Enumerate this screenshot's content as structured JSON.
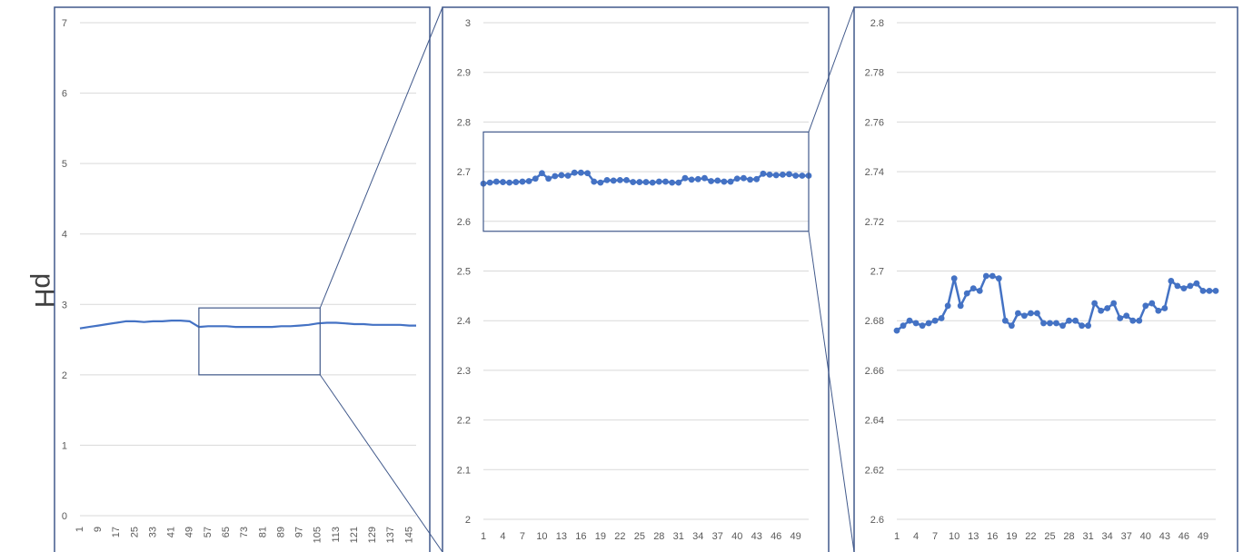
{
  "figure": {
    "ylabel": "pH"
  },
  "chart_data": [
    {
      "type": "line",
      "title": "",
      "xlabel": "",
      "ylabel": "pH",
      "ylim": [
        0,
        7
      ],
      "yticks": [
        "0",
        "1",
        "2",
        "3",
        "4",
        "5",
        "6",
        "7"
      ],
      "xticks": [
        "1",
        "9",
        "17",
        "25",
        "33",
        "41",
        "49",
        "57",
        "65",
        "73",
        "81",
        "89",
        "97",
        "105",
        "113",
        "121",
        "129",
        "137",
        "145"
      ],
      "grid": true,
      "series": [
        {
          "color": "#4472c4",
          "x": [
            1,
            5,
            9,
            13,
            17,
            21,
            25,
            29,
            33,
            37,
            41,
            45,
            49,
            53,
            57,
            61,
            65,
            69,
            73,
            77,
            81,
            85,
            89,
            93,
            97,
            101,
            105,
            109,
            113,
            117,
            121,
            125,
            129,
            133,
            137,
            141,
            145,
            148
          ],
          "values": [
            2.66,
            2.68,
            2.7,
            2.72,
            2.74,
            2.76,
            2.76,
            2.75,
            2.76,
            2.76,
            2.77,
            2.77,
            2.76,
            2.68,
            2.69,
            2.69,
            2.69,
            2.68,
            2.68,
            2.68,
            2.68,
            2.68,
            2.69,
            2.69,
            2.7,
            2.71,
            2.73,
            2.74,
            2.74,
            2.73,
            2.72,
            2.72,
            2.71,
            2.71,
            2.71,
            2.71,
            2.7,
            2.7
          ]
        }
      ]
    },
    {
      "type": "line",
      "title": "",
      "xlabel": "",
      "ylabel": "",
      "ylim": [
        2,
        3
      ],
      "yticks": [
        "2",
        "2.1",
        "2.2",
        "2.3",
        "2.4",
        "2.5",
        "2.6",
        "2.7",
        "2.8",
        "2.9",
        "3"
      ],
      "xticks": [
        "1",
        "4",
        "7",
        "10",
        "13",
        "16",
        "19",
        "22",
        "25",
        "28",
        "31",
        "34",
        "37",
        "40",
        "43",
        "46",
        "49"
      ],
      "grid": true,
      "series": [
        {
          "color": "#4472c4",
          "markers": true,
          "x": [
            1,
            2,
            3,
            4,
            5,
            6,
            7,
            8,
            9,
            10,
            11,
            12,
            13,
            14,
            15,
            16,
            17,
            18,
            19,
            20,
            21,
            22,
            23,
            24,
            25,
            26,
            27,
            28,
            29,
            30,
            31,
            32,
            33,
            34,
            35,
            36,
            37,
            38,
            39,
            40,
            41,
            42,
            43,
            44,
            45,
            46,
            47,
            48,
            49,
            50,
            51
          ],
          "values": [
            2.676,
            2.678,
            2.68,
            2.679,
            2.678,
            2.679,
            2.68,
            2.681,
            2.686,
            2.697,
            2.686,
            2.691,
            2.693,
            2.692,
            2.698,
            2.698,
            2.697,
            2.68,
            2.678,
            2.683,
            2.682,
            2.683,
            2.683,
            2.679,
            2.679,
            2.679,
            2.678,
            2.68,
            2.68,
            2.678,
            2.678,
            2.687,
            2.684,
            2.685,
            2.687,
            2.681,
            2.682,
            2.68,
            2.68,
            2.686,
            2.687,
            2.684,
            2.685,
            2.696,
            2.694,
            2.693,
            2.694,
            2.695,
            2.692,
            2.692,
            2.692
          ]
        }
      ]
    },
    {
      "type": "line",
      "title": "",
      "xlabel": "",
      "ylabel": "",
      "ylim": [
        2.6,
        2.8
      ],
      "yticks": [
        "2.6",
        "2.62",
        "2.64",
        "2.66",
        "2.68",
        "2.7",
        "2.72",
        "2.74",
        "2.76",
        "2.78",
        "2.8"
      ],
      "xticks": [
        "1",
        "4",
        "7",
        "10",
        "13",
        "16",
        "19",
        "22",
        "25",
        "28",
        "31",
        "34",
        "37",
        "40",
        "43",
        "46",
        "49"
      ],
      "grid": true,
      "series": [
        {
          "color": "#4472c4",
          "markers": true,
          "x": [
            1,
            2,
            3,
            4,
            5,
            6,
            7,
            8,
            9,
            10,
            11,
            12,
            13,
            14,
            15,
            16,
            17,
            18,
            19,
            20,
            21,
            22,
            23,
            24,
            25,
            26,
            27,
            28,
            29,
            30,
            31,
            32,
            33,
            34,
            35,
            36,
            37,
            38,
            39,
            40,
            41,
            42,
            43,
            44,
            45,
            46,
            47,
            48,
            49,
            50,
            51
          ],
          "values": [
            2.676,
            2.678,
            2.68,
            2.679,
            2.678,
            2.679,
            2.68,
            2.681,
            2.686,
            2.697,
            2.686,
            2.691,
            2.693,
            2.692,
            2.698,
            2.698,
            2.697,
            2.68,
            2.678,
            2.683,
            2.682,
            2.683,
            2.683,
            2.679,
            2.679,
            2.679,
            2.678,
            2.68,
            2.68,
            2.678,
            2.678,
            2.687,
            2.684,
            2.685,
            2.687,
            2.681,
            2.682,
            2.68,
            2.68,
            2.686,
            2.687,
            2.684,
            2.685,
            2.696,
            2.694,
            2.693,
            2.694,
            2.695,
            2.692,
            2.692,
            2.692
          ]
        }
      ]
    }
  ]
}
